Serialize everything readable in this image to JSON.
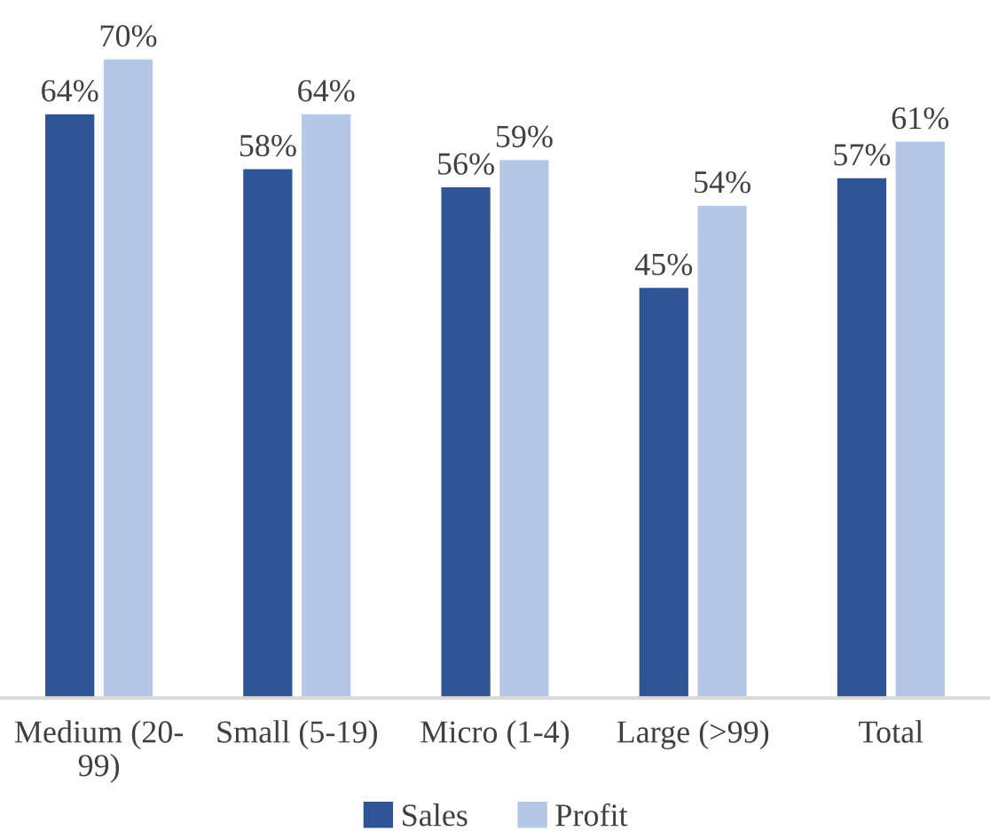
{
  "chart_data": {
    "type": "bar",
    "categories": [
      "Medium (20-\n99)",
      "Small (5-19)",
      "Micro (1-4)",
      "Large (>99)",
      "Total"
    ],
    "series": [
      {
        "name": "Sales",
        "color": "#2f5597",
        "values": [
          64,
          58,
          56,
          45,
          57
        ],
        "value_labels": [
          "64%",
          "58%",
          "56%",
          "45%",
          "57%"
        ]
      },
      {
        "name": "Profit",
        "color": "#b4c7e7",
        "values": [
          70,
          64,
          59,
          54,
          61
        ],
        "value_labels": [
          "70%",
          "64%",
          "59%",
          "54%",
          "61%"
        ]
      }
    ],
    "legend": "bottom",
    "tick_labels": "x"
  }
}
